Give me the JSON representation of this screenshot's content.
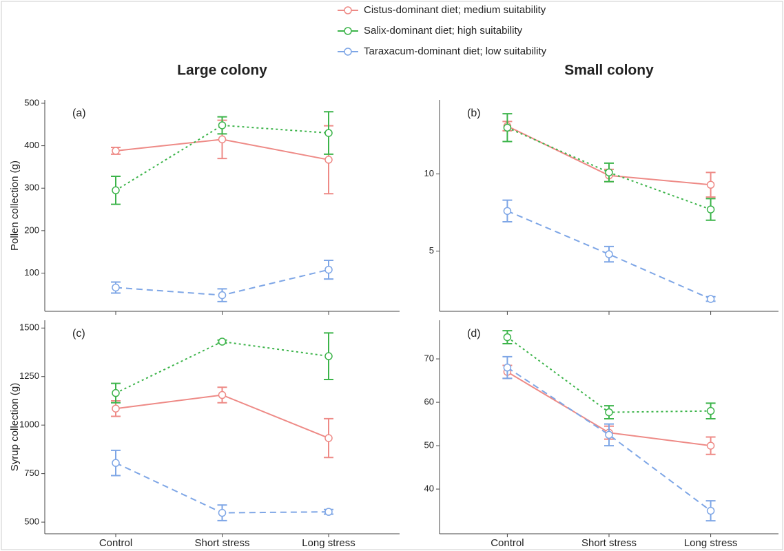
{
  "chart_data": [
    {
      "type": "line",
      "title": "Large colony",
      "label": "(a)",
      "y_label": "Pollen collection (g)",
      "ylim": [
        10,
        508
      ],
      "yticks": [
        100,
        200,
        300,
        400,
        500
      ],
      "series": [
        {
          "name": "Cistus-dominant diet; medium suitability",
          "color": "#ee8a86",
          "values": [
            388,
            415,
            367
          ],
          "errors": [
            8,
            45,
            80
          ]
        },
        {
          "name": "Salix-dominant diet; high suitability",
          "color": "#3cb44a",
          "values": [
            295,
            448,
            430
          ],
          "errors": [
            33,
            20,
            50
          ]
        },
        {
          "name": "Taraxacum-dominant diet; low suitability",
          "color": "#7ea6e6",
          "values": [
            66,
            48,
            108
          ],
          "errors": [
            13,
            15,
            22
          ]
        }
      ]
    },
    {
      "type": "line",
      "title": "Small colony",
      "label": "(b)",
      "ylim": [
        1.1,
        14.8
      ],
      "yticks": [
        5,
        10
      ],
      "series": [
        {
          "color": "#ee8a86",
          "values": [
            13.1,
            9.9,
            9.3
          ],
          "errors": [
            0.3,
            0.4,
            0.8
          ]
        },
        {
          "color": "#3cb44a",
          "values": [
            13.0,
            10.1,
            7.7
          ],
          "errors": [
            0.9,
            0.6,
            0.7
          ]
        },
        {
          "color": "#7ea6e6",
          "values": [
            7.6,
            4.8,
            1.9
          ],
          "errors": [
            0.7,
            0.5,
            0.15
          ]
        }
      ]
    },
    {
      "type": "line",
      "label": "(c)",
      "y_label": "Syrup collection (g)",
      "categories": [
        "Control",
        "Short stress",
        "Long stress"
      ],
      "ylim": [
        440,
        1540
      ],
      "yticks": [
        500,
        750,
        1000,
        1250,
        1500
      ],
      "series": [
        {
          "color": "#ee8a86",
          "values": [
            1085,
            1155,
            933
          ],
          "errors": [
            40,
            40,
            100
          ]
        },
        {
          "color": "#3cb44a",
          "values": [
            1165,
            1430,
            1355
          ],
          "errors": [
            50,
            8,
            120
          ]
        },
        {
          "color": "#7ea6e6",
          "values": [
            805,
            548,
            553
          ],
          "errors": [
            65,
            40,
            12
          ]
        }
      ]
    },
    {
      "type": "line",
      "label": "(d)",
      "categories": [
        "Control",
        "Short stress",
        "Long stress"
      ],
      "ylim": [
        29.7,
        78.9
      ],
      "yticks": [
        40,
        50,
        60,
        70
      ],
      "series": [
        {
          "color": "#ee8a86",
          "values": [
            67,
            53,
            50
          ],
          "errors": [
            1.5,
            1.5,
            2
          ]
        },
        {
          "color": "#3cb44a",
          "values": [
            75,
            57.7,
            58
          ],
          "errors": [
            1.5,
            1.5,
            1.8
          ]
        },
        {
          "color": "#7ea6e6",
          "values": [
            68,
            52.5,
            35
          ],
          "errors": [
            2.5,
            2.5,
            2.3
          ]
        }
      ]
    }
  ]
}
